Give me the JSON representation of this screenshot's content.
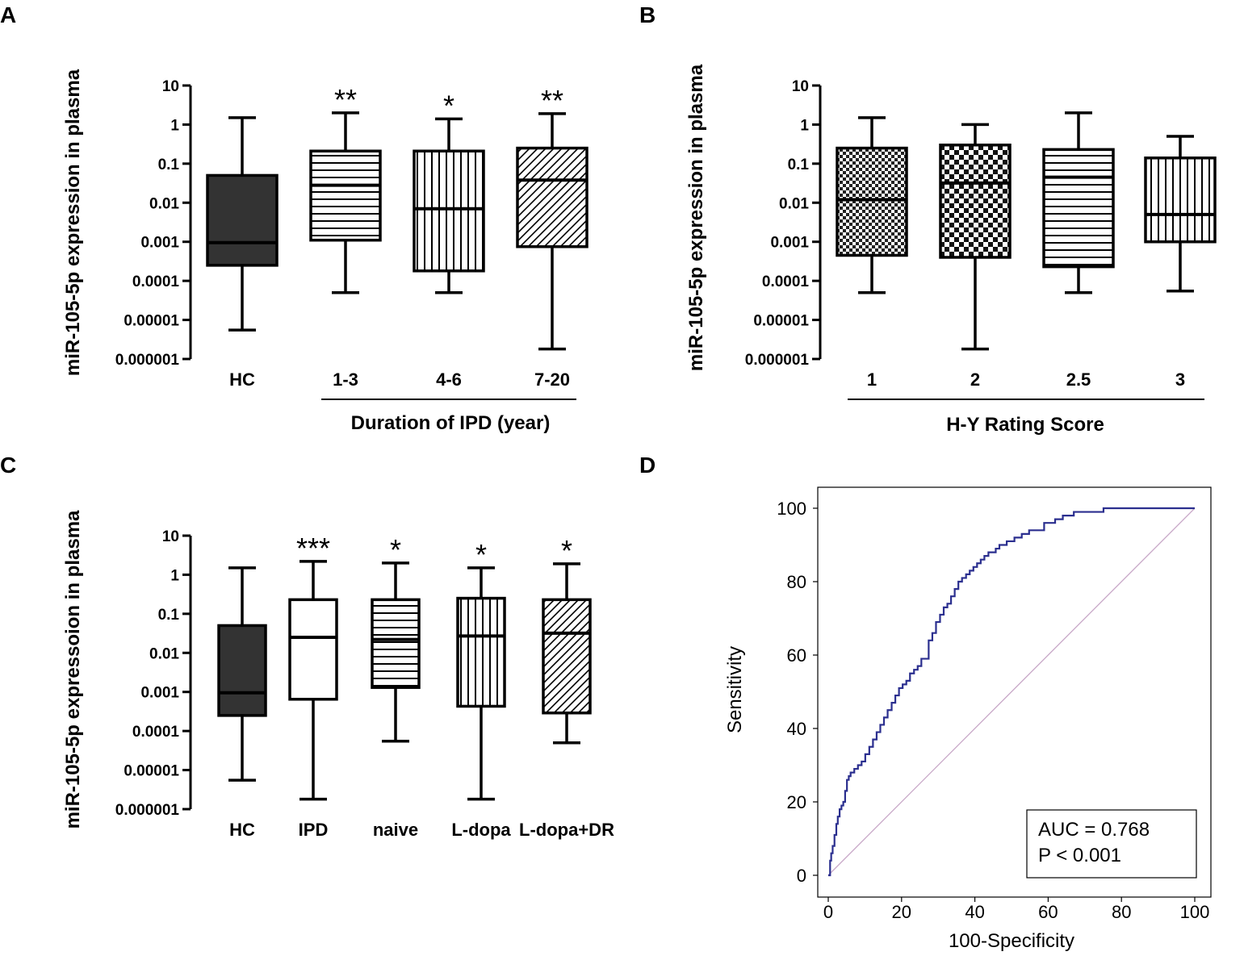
{
  "figure": {
    "panels": [
      "A",
      "B",
      "C",
      "D"
    ]
  },
  "colors": {
    "black": "#000000",
    "dark_fill": "#333333",
    "roc_curve": "#2b2f8f",
    "diagonal": "#c8a8c8"
  },
  "chart_data": [
    {
      "panel": "A",
      "type": "box",
      "yscale": "log",
      "ylim": [
        1e-06,
        10
      ],
      "yticks": [
        {
          "value": 10,
          "label": "10"
        },
        {
          "value": 1,
          "label": "1"
        },
        {
          "value": 0.1,
          "label": "0.1"
        },
        {
          "value": 0.01,
          "label": "0.01"
        },
        {
          "value": 0.001,
          "label": "0.001"
        },
        {
          "value": 0.0001,
          "label": "0.0001"
        },
        {
          "value": 1e-05,
          "label": "0.00001"
        },
        {
          "value": 1e-06,
          "label": "0.000001"
        }
      ],
      "ylabel": "miR-105-5p expression in plasma",
      "xlabel": "Duration of IPD (year)",
      "group_bracket": [
        1,
        3
      ],
      "categories": [
        "HC",
        "1-3",
        "4-6",
        "7-20"
      ],
      "boxes": [
        {
          "min": 5.5e-06,
          "q1": 0.00025,
          "median": 0.00095,
          "q3": 0.05,
          "max": 1.5,
          "pattern": "solid",
          "significance": ""
        },
        {
          "min": 5e-05,
          "q1": 0.0011,
          "median": 0.028,
          "q3": 0.21,
          "max": 2.0,
          "pattern": "hlines",
          "significance": "**"
        },
        {
          "min": 5e-05,
          "q1": 0.00018,
          "median": 0.007,
          "q3": 0.21,
          "max": 1.4,
          "pattern": "vlines",
          "significance": "*"
        },
        {
          "min": 1.8e-06,
          "q1": 0.00075,
          "median": 0.038,
          "q3": 0.25,
          "max": 1.9,
          "pattern": "diag",
          "significance": "**"
        }
      ]
    },
    {
      "panel": "B",
      "type": "box",
      "yscale": "log",
      "ylim": [
        1e-06,
        10
      ],
      "yticks": [
        {
          "value": 10,
          "label": "10"
        },
        {
          "value": 1,
          "label": "1"
        },
        {
          "value": 0.1,
          "label": "0.1"
        },
        {
          "value": 0.01,
          "label": "0.01"
        },
        {
          "value": 0.001,
          "label": "0.001"
        },
        {
          "value": 0.0001,
          "label": "0.0001"
        },
        {
          "value": 1e-05,
          "label": "0.00001"
        },
        {
          "value": 1e-06,
          "label": "0.000001"
        }
      ],
      "ylabel": "miR-105-5p expression in plasma",
      "xlabel": "H-Y Rating Score",
      "group_bracket": [
        0,
        3
      ],
      "categories": [
        "1",
        "2",
        "2.5",
        "3"
      ],
      "boxes": [
        {
          "min": 5e-05,
          "q1": 0.00045,
          "median": 0.012,
          "q3": 0.25,
          "max": 1.5,
          "pattern": "checker_small",
          "significance": ""
        },
        {
          "min": 1.8e-06,
          "q1": 0.0004,
          "median": 0.032,
          "q3": 0.3,
          "max": 1.0,
          "pattern": "checker_large",
          "significance": ""
        },
        {
          "min": 5e-05,
          "q1": 0.00023,
          "median": 0.045,
          "q3": 0.23,
          "max": 2.0,
          "pattern": "hlines",
          "significance": ""
        },
        {
          "min": 5.5e-05,
          "q1": 0.001,
          "median": 0.005,
          "q3": 0.14,
          "max": 0.5,
          "pattern": "vlines",
          "significance": ""
        }
      ]
    },
    {
      "panel": "C",
      "type": "box",
      "yscale": "log",
      "ylim": [
        1e-06,
        10
      ],
      "yticks": [
        {
          "value": 10,
          "label": "10"
        },
        {
          "value": 1,
          "label": "1"
        },
        {
          "value": 0.1,
          "label": "0.1"
        },
        {
          "value": 0.01,
          "label": "0.01"
        },
        {
          "value": 0.001,
          "label": "0.001"
        },
        {
          "value": 0.0001,
          "label": "0.0001"
        },
        {
          "value": 1e-05,
          "label": "0.00001"
        },
        {
          "value": 1e-06,
          "label": "0.000001"
        }
      ],
      "ylabel": "miR-105-5p expressoion in plasma",
      "xlabel": "",
      "group_bracket": null,
      "categories": [
        "HC",
        "IPD",
        "naive",
        "L-dopa",
        "L-dopa+DR"
      ],
      "boxes": [
        {
          "min": 5.5e-06,
          "q1": 0.00025,
          "median": 0.00095,
          "q3": 0.05,
          "max": 1.5,
          "pattern": "solid",
          "significance": ""
        },
        {
          "min": 1.8e-06,
          "q1": 0.00065,
          "median": 0.025,
          "q3": 0.23,
          "max": 2.2,
          "pattern": "white",
          "significance": "***"
        },
        {
          "min": 5.5e-05,
          "q1": 0.0013,
          "median": 0.022,
          "q3": 0.23,
          "max": 2.0,
          "pattern": "hlines",
          "significance": "*"
        },
        {
          "min": 1.8e-06,
          "q1": 0.00043,
          "median": 0.027,
          "q3": 0.25,
          "max": 1.5,
          "pattern": "vlines",
          "significance": "*"
        },
        {
          "min": 5e-05,
          "q1": 0.00029,
          "median": 0.032,
          "q3": 0.23,
          "max": 1.9,
          "pattern": "diag",
          "significance": "*"
        }
      ]
    },
    {
      "panel": "D",
      "type": "line",
      "title": "",
      "xlabel": "100-Specificity",
      "ylabel": "Sensitivity",
      "xlim": [
        0,
        100
      ],
      "ylim": [
        0,
        100
      ],
      "xticks": [
        "0",
        "20",
        "40",
        "60",
        "80",
        "100"
      ],
      "yticks": [
        "0",
        "20",
        "40",
        "60",
        "80",
        "100"
      ],
      "series": [
        {
          "name": "ROC",
          "x": [
            0,
            0.5,
            0.8,
            1.2,
            1.7,
            2.2,
            2.6,
            3.1,
            3.6,
            4.1,
            4.6,
            5.1,
            5.6,
            6.1,
            7.1,
            8.1,
            9.1,
            10.1,
            11.2,
            12.2,
            13.2,
            14.2,
            15.2,
            16.2,
            17.3,
            18.3,
            19.3,
            20.3,
            21.3,
            22.3,
            23.4,
            24.4,
            25.4,
            26.4,
            27.4,
            28.4,
            29.4,
            30.5,
            31.5,
            32.5,
            33.5,
            34.5,
            35.5,
            36.5,
            37.6,
            38.6,
            39.6,
            40.6,
            41.6,
            42.6,
            43.7,
            44.7,
            45.7,
            46.7,
            47.7,
            48.7,
            50.8,
            52.8,
            54.8,
            56.9,
            58.9,
            61.9,
            64.0,
            67.0,
            70.1,
            75.1,
            80.2,
            85.3,
            90.4,
            95.4,
            100
          ],
          "y": [
            0,
            4,
            6,
            8,
            11,
            14,
            16,
            18,
            19,
            20,
            23,
            26,
            27,
            28,
            29,
            30,
            31,
            33,
            35,
            37,
            39,
            41,
            43,
            45,
            47,
            49,
            51,
            52,
            53,
            55,
            56,
            57,
            59,
            59,
            64,
            66,
            69,
            71,
            73,
            74,
            76,
            78,
            80,
            81,
            82,
            83,
            84,
            85,
            86,
            87,
            88,
            88,
            89,
            90,
            90,
            91,
            92,
            93,
            94,
            94,
            96,
            97,
            98,
            99,
            99,
            100,
            100,
            100,
            100,
            100,
            100
          ]
        },
        {
          "name": "reference",
          "x": [
            0,
            100
          ],
          "y": [
            0,
            100
          ]
        }
      ],
      "annotation": {
        "auc": "AUC = 0.768",
        "p": "P < 0.001"
      }
    }
  ]
}
